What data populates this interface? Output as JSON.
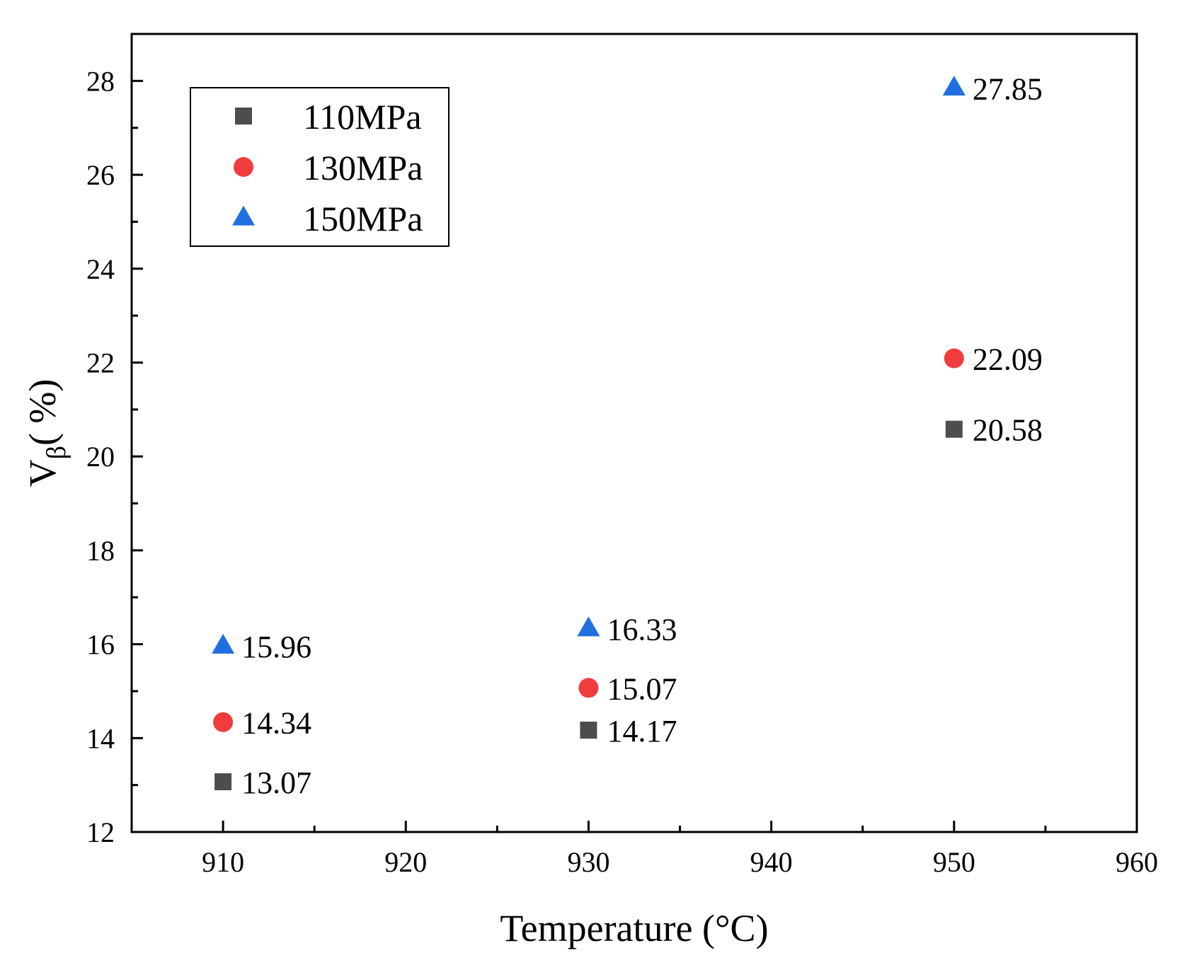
{
  "chart_data": {
    "type": "scatter",
    "title": "",
    "xlabel": "Temperature (°C)",
    "ylabel_main": "V",
    "ylabel_sub": "β",
    "ylabel_unit": "( %)",
    "xlim": [
      905,
      960
    ],
    "ylim": [
      12,
      29
    ],
    "xticks": [
      910,
      920,
      930,
      940,
      950,
      960
    ],
    "yticks": [
      12,
      14,
      16,
      18,
      20,
      22,
      24,
      26,
      28
    ],
    "grid": false,
    "legend_position": "top-left",
    "series": [
      {
        "name": "110MPa",
        "marker": "square",
        "color": "#4d4d4d",
        "points": [
          {
            "x": 910,
            "y": 13.07,
            "label": "13.07"
          },
          {
            "x": 930,
            "y": 14.17,
            "label": "14.17"
          },
          {
            "x": 950,
            "y": 20.58,
            "label": "20.58"
          }
        ]
      },
      {
        "name": "130MPa",
        "marker": "circle",
        "color": "#f03c3c",
        "points": [
          {
            "x": 910,
            "y": 14.34,
            "label": "14.34"
          },
          {
            "x": 930,
            "y": 15.07,
            "label": "15.07"
          },
          {
            "x": 950,
            "y": 22.09,
            "label": "22.09"
          }
        ]
      },
      {
        "name": "150MPa",
        "marker": "triangle",
        "color": "#1f6fe0",
        "points": [
          {
            "x": 910,
            "y": 15.96,
            "label": "15.96"
          },
          {
            "x": 930,
            "y": 16.33,
            "label": "16.33"
          },
          {
            "x": 950,
            "y": 27.85,
            "label": "27.85"
          }
        ]
      }
    ]
  }
}
